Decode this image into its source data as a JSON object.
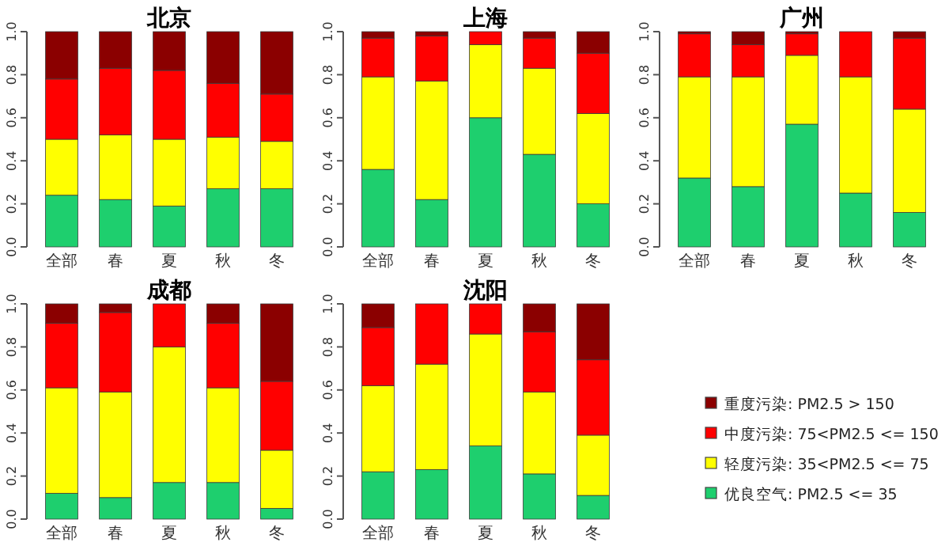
{
  "chart_data": [
    {
      "type": "bar",
      "title": "北京",
      "categories": [
        "全部",
        "春",
        "夏",
        "秋",
        "冬"
      ],
      "stacked": true,
      "ylim": [
        0,
        1
      ],
      "yticks": [
        {
          "value": 0,
          "label": "0.0"
        },
        {
          "value": 0.2,
          "label": "0.2"
        },
        {
          "value": 0.4,
          "label": "0.4"
        },
        {
          "value": 0.6,
          "label": "0.6"
        },
        {
          "value": 0.8,
          "label": "0.8"
        },
        {
          "value": 1,
          "label": "1.0"
        }
      ],
      "legend": false,
      "series": [
        {
          "color": "#1ecf6e",
          "values": [
            0.24,
            0.22,
            0.19,
            0.27,
            0.27
          ]
        },
        {
          "color": "#ffff00",
          "values": [
            0.26,
            0.3,
            0.31,
            0.24,
            0.22
          ]
        },
        {
          "color": "#ff0000",
          "values": [
            0.28,
            0.31,
            0.32,
            0.25,
            0.22
          ]
        },
        {
          "color": "#8b0000",
          "values": [
            0.22,
            0.17,
            0.18,
            0.24,
            0.29
          ]
        }
      ]
    },
    {
      "type": "bar",
      "title": "上海",
      "categories": [
        "全部",
        "春",
        "夏",
        "秋",
        "冬"
      ],
      "stacked": true,
      "ylim": [
        0,
        1
      ],
      "yticks": [
        {
          "value": 0,
          "label": "0.0"
        },
        {
          "value": 0.2,
          "label": "0.2"
        },
        {
          "value": 0.4,
          "label": "0.4"
        },
        {
          "value": 0.6,
          "label": "0.6"
        },
        {
          "value": 0.8,
          "label": "0.8"
        },
        {
          "value": 1,
          "label": "1.0"
        }
      ],
      "legend": false,
      "series": [
        {
          "color": "#1ecf6e",
          "values": [
            0.36,
            0.22,
            0.6,
            0.43,
            0.2
          ]
        },
        {
          "color": "#ffff00",
          "values": [
            0.43,
            0.55,
            0.34,
            0.4,
            0.42
          ]
        },
        {
          "color": "#ff0000",
          "values": [
            0.18,
            0.21,
            0.06,
            0.14,
            0.28
          ]
        },
        {
          "color": "#8b0000",
          "values": [
            0.03,
            0.02,
            0,
            0.03,
            0.1
          ]
        }
      ]
    },
    {
      "type": "bar",
      "title": "广州",
      "categories": [
        "全部",
        "春",
        "夏",
        "秋",
        "冬"
      ],
      "stacked": true,
      "ylim": [
        0,
        1
      ],
      "yticks": [
        {
          "value": 0,
          "label": "0.0"
        },
        {
          "value": 0.2,
          "label": "0.2"
        },
        {
          "value": 0.4,
          "label": "0.4"
        },
        {
          "value": 0.6,
          "label": "0.6"
        },
        {
          "value": 0.8,
          "label": "0.8"
        },
        {
          "value": 1,
          "label": "1.0"
        }
      ],
      "legend": false,
      "series": [
        {
          "color": "#1ecf6e",
          "values": [
            0.32,
            0.28,
            0.57,
            0.25,
            0.16
          ]
        },
        {
          "color": "#ffff00",
          "values": [
            0.47,
            0.51,
            0.32,
            0.54,
            0.48
          ]
        },
        {
          "color": "#ff0000",
          "values": [
            0.2,
            0.15,
            0.1,
            0.21,
            0.33
          ]
        },
        {
          "color": "#8b0000",
          "values": [
            0.01,
            0.06,
            0.01,
            0,
            0.03
          ]
        }
      ]
    },
    {
      "type": "bar",
      "title": "成都",
      "categories": [
        "全部",
        "春",
        "夏",
        "秋",
        "冬"
      ],
      "stacked": true,
      "ylim": [
        0,
        1
      ],
      "yticks": [
        {
          "value": 0,
          "label": "0.0"
        },
        {
          "value": 0.2,
          "label": "0.2"
        },
        {
          "value": 0.4,
          "label": "0.4"
        },
        {
          "value": 0.6,
          "label": "0.6"
        },
        {
          "value": 0.8,
          "label": "0.8"
        },
        {
          "value": 1,
          "label": "1.0"
        }
      ],
      "legend": false,
      "series": [
        {
          "color": "#1ecf6e",
          "values": [
            0.12,
            0.1,
            0.17,
            0.17,
            0.05
          ]
        },
        {
          "color": "#ffff00",
          "values": [
            0.49,
            0.49,
            0.63,
            0.44,
            0.27
          ]
        },
        {
          "color": "#ff0000",
          "values": [
            0.3,
            0.37,
            0.2,
            0.3,
            0.32
          ]
        },
        {
          "color": "#8b0000",
          "values": [
            0.09,
            0.04,
            0,
            0.09,
            0.36
          ]
        }
      ]
    },
    {
      "type": "bar",
      "title": "沈阳",
      "categories": [
        "全部",
        "春",
        "夏",
        "秋",
        "冬"
      ],
      "stacked": true,
      "ylim": [
        0,
        1
      ],
      "yticks": [
        {
          "value": 0,
          "label": "0.0"
        },
        {
          "value": 0.2,
          "label": "0.2"
        },
        {
          "value": 0.4,
          "label": "0.4"
        },
        {
          "value": 0.6,
          "label": "0.6"
        },
        {
          "value": 0.8,
          "label": "0.8"
        },
        {
          "value": 1,
          "label": "1.0"
        }
      ],
      "legend": "right",
      "series": [
        {
          "name": "优良空气: PM2.5 <= 35",
          "color": "#1ecf6e",
          "values": [
            0.22,
            0.23,
            0.34,
            0.21,
            0.11
          ]
        },
        {
          "name": "轻度污染: 35<PM2.5 <= 75",
          "color": "#ffff00",
          "values": [
            0.4,
            0.49,
            0.52,
            0.38,
            0.28
          ]
        },
        {
          "name": "中度污染: 75<PM2.5 <= 150",
          "color": "#ff0000",
          "values": [
            0.27,
            0.28,
            0.14,
            0.28,
            0.35
          ]
        },
        {
          "name": "重度污染: PM2.5 > 150",
          "color": "#8b0000",
          "values": [
            0.11,
            0.0,
            0.0,
            0.13,
            0.26
          ]
        }
      ]
    }
  ]
}
